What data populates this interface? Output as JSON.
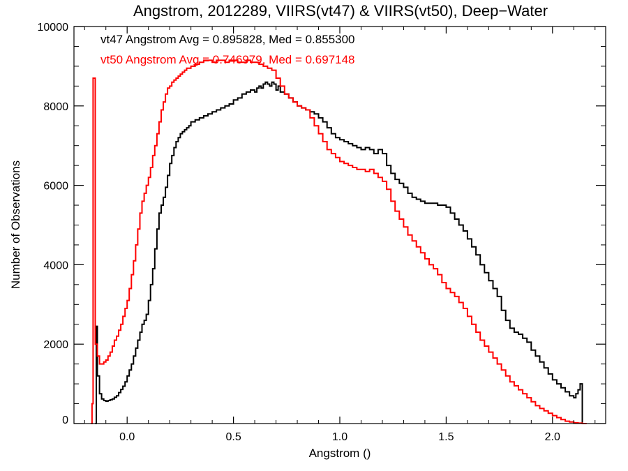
{
  "chart_data": {
    "type": "line",
    "title": "Angstrom, 2012289, VIIRS(vt47) & VIIRS(vt50), Deep−Water",
    "xlabel": "Angstrom ()",
    "ylabel": "Number of Observations",
    "xlim": [
      -0.25,
      2.25
    ],
    "ylim": [
      0,
      10000
    ],
    "xticks": [
      0.0,
      0.5,
      1.0,
      1.5,
      2.0
    ],
    "xtick_labels": [
      "0.0",
      "0.5",
      "1.0",
      "1.5",
      "2.0"
    ],
    "yticks": [
      0,
      2000,
      4000,
      6000,
      8000,
      10000
    ],
    "ytick_labels": [
      "0",
      "2000",
      "4000",
      "6000",
      "8000",
      "10000"
    ],
    "grid": false,
    "annotations": [
      {
        "text": "vt47 Angstrom Avg = 0.895828, Med = 0.855300",
        "color": "#000000"
      },
      {
        "text": "vt50 Angstrom Avg = 0.746979, Med = 0.697148",
        "color": "#ff0000"
      }
    ],
    "series": [
      {
        "color": "#000000",
        "points": [
          [
            -0.15,
            0
          ],
          [
            -0.145,
            2450
          ],
          [
            -0.14,
            1200
          ],
          [
            -0.13,
            750
          ],
          [
            -0.12,
            620
          ],
          [
            -0.11,
            580
          ],
          [
            -0.1,
            560
          ],
          [
            -0.09,
            580
          ],
          [
            -0.08,
            600
          ],
          [
            -0.07,
            620
          ],
          [
            -0.06,
            660
          ],
          [
            -0.05,
            700
          ],
          [
            -0.04,
            780
          ],
          [
            -0.03,
            860
          ],
          [
            -0.02,
            940
          ],
          [
            -0.01,
            1050
          ],
          [
            0.0,
            1200
          ],
          [
            0.01,
            1350
          ],
          [
            0.02,
            1500
          ],
          [
            0.03,
            1700
          ],
          [
            0.04,
            1900
          ],
          [
            0.05,
            2100
          ],
          [
            0.06,
            2300
          ],
          [
            0.07,
            2500
          ],
          [
            0.08,
            2600
          ],
          [
            0.09,
            2750
          ],
          [
            0.1,
            3100
          ],
          [
            0.11,
            3500
          ],
          [
            0.12,
            3900
          ],
          [
            0.13,
            4400
          ],
          [
            0.14,
            4900
          ],
          [
            0.15,
            5300
          ],
          [
            0.16,
            5500
          ],
          [
            0.17,
            5700
          ],
          [
            0.18,
            5950
          ],
          [
            0.19,
            6250
          ],
          [
            0.2,
            6550
          ],
          [
            0.21,
            6750
          ],
          [
            0.22,
            6950
          ],
          [
            0.23,
            7100
          ],
          [
            0.24,
            7200
          ],
          [
            0.25,
            7300
          ],
          [
            0.26,
            7350
          ],
          [
            0.27,
            7400
          ],
          [
            0.28,
            7450
          ],
          [
            0.29,
            7500
          ],
          [
            0.3,
            7600
          ],
          [
            0.32,
            7650
          ],
          [
            0.34,
            7700
          ],
          [
            0.36,
            7750
          ],
          [
            0.38,
            7800
          ],
          [
            0.4,
            7850
          ],
          [
            0.42,
            7900
          ],
          [
            0.44,
            7950
          ],
          [
            0.46,
            8000
          ],
          [
            0.48,
            8050
          ],
          [
            0.5,
            8150
          ],
          [
            0.52,
            8200
          ],
          [
            0.54,
            8300
          ],
          [
            0.56,
            8350
          ],
          [
            0.58,
            8400
          ],
          [
            0.6,
            8350
          ],
          [
            0.61,
            8450
          ],
          [
            0.62,
            8500
          ],
          [
            0.63,
            8450
          ],
          [
            0.64,
            8550
          ],
          [
            0.65,
            8600
          ],
          [
            0.66,
            8550
          ],
          [
            0.67,
            8500
          ],
          [
            0.68,
            8600
          ],
          [
            0.69,
            8550
          ],
          [
            0.7,
            8400
          ],
          [
            0.71,
            8500
          ],
          [
            0.72,
            8350
          ],
          [
            0.74,
            8300
          ],
          [
            0.76,
            8200
          ],
          [
            0.78,
            8100
          ],
          [
            0.8,
            8000
          ],
          [
            0.82,
            7950
          ],
          [
            0.84,
            7900
          ],
          [
            0.86,
            7850
          ],
          [
            0.88,
            7800
          ],
          [
            0.9,
            7700
          ],
          [
            0.92,
            7600
          ],
          [
            0.94,
            7450
          ],
          [
            0.96,
            7300
          ],
          [
            0.98,
            7200
          ],
          [
            1.0,
            7150
          ],
          [
            1.02,
            7100
          ],
          [
            1.04,
            7050
          ],
          [
            1.06,
            7000
          ],
          [
            1.08,
            6950
          ],
          [
            1.1,
            6900
          ],
          [
            1.12,
            6950
          ],
          [
            1.14,
            6900
          ],
          [
            1.16,
            6800
          ],
          [
            1.18,
            6900
          ],
          [
            1.2,
            6800
          ],
          [
            1.22,
            6500
          ],
          [
            1.24,
            6300
          ],
          [
            1.26,
            6150
          ],
          [
            1.28,
            6050
          ],
          [
            1.3,
            5950
          ],
          [
            1.32,
            5800
          ],
          [
            1.34,
            5700
          ],
          [
            1.36,
            5650
          ],
          [
            1.38,
            5600
          ],
          [
            1.4,
            5550
          ],
          [
            1.42,
            5550
          ],
          [
            1.44,
            5550
          ],
          [
            1.46,
            5500
          ],
          [
            1.48,
            5500
          ],
          [
            1.5,
            5450
          ],
          [
            1.52,
            5300
          ],
          [
            1.54,
            5150
          ],
          [
            1.56,
            5000
          ],
          [
            1.58,
            4850
          ],
          [
            1.6,
            4650
          ],
          [
            1.62,
            4450
          ],
          [
            1.64,
            4250
          ],
          [
            1.66,
            4000
          ],
          [
            1.68,
            3800
          ],
          [
            1.7,
            3600
          ],
          [
            1.72,
            3400
          ],
          [
            1.74,
            3200
          ],
          [
            1.76,
            2850
          ],
          [
            1.78,
            2600
          ],
          [
            1.8,
            2400
          ],
          [
            1.82,
            2300
          ],
          [
            1.84,
            2250
          ],
          [
            1.86,
            2150
          ],
          [
            1.88,
            2050
          ],
          [
            1.9,
            1850
          ],
          [
            1.92,
            1700
          ],
          [
            1.94,
            1550
          ],
          [
            1.96,
            1400
          ],
          [
            1.98,
            1250
          ],
          [
            2.0,
            1100
          ],
          [
            2.02,
            1000
          ],
          [
            2.04,
            900
          ],
          [
            2.06,
            800
          ],
          [
            2.08,
            700
          ],
          [
            2.1,
            650
          ],
          [
            2.11,
            750
          ],
          [
            2.12,
            850
          ],
          [
            2.13,
            1000
          ],
          [
            2.14,
            0
          ]
        ]
      },
      {
        "color": "#ff0000",
        "points": [
          [
            -0.17,
            0
          ],
          [
            -0.165,
            500
          ],
          [
            -0.16,
            8700
          ],
          [
            -0.15,
            2000
          ],
          [
            -0.14,
            1700
          ],
          [
            -0.13,
            1500
          ],
          [
            -0.12,
            1500
          ],
          [
            -0.11,
            1550
          ],
          [
            -0.1,
            1600
          ],
          [
            -0.09,
            1700
          ],
          [
            -0.08,
            1800
          ],
          [
            -0.07,
            1950
          ],
          [
            -0.06,
            2100
          ],
          [
            -0.05,
            2200
          ],
          [
            -0.04,
            2350
          ],
          [
            -0.03,
            2500
          ],
          [
            -0.02,
            2700
          ],
          [
            -0.01,
            2900
          ],
          [
            0.0,
            3100
          ],
          [
            0.01,
            3400
          ],
          [
            0.02,
            3750
          ],
          [
            0.03,
            4100
          ],
          [
            0.04,
            4500
          ],
          [
            0.05,
            4900
          ],
          [
            0.06,
            5300
          ],
          [
            0.07,
            5600
          ],
          [
            0.08,
            5800
          ],
          [
            0.09,
            6000
          ],
          [
            0.1,
            6200
          ],
          [
            0.11,
            6450
          ],
          [
            0.12,
            6750
          ],
          [
            0.13,
            7000
          ],
          [
            0.14,
            7300
          ],
          [
            0.15,
            7600
          ],
          [
            0.16,
            7900
          ],
          [
            0.17,
            8100
          ],
          [
            0.18,
            8300
          ],
          [
            0.19,
            8450
          ],
          [
            0.2,
            8500
          ],
          [
            0.21,
            8600
          ],
          [
            0.22,
            8650
          ],
          [
            0.23,
            8700
          ],
          [
            0.24,
            8750
          ],
          [
            0.25,
            8800
          ],
          [
            0.26,
            8850
          ],
          [
            0.27,
            8900
          ],
          [
            0.28,
            8950
          ],
          [
            0.3,
            9000
          ],
          [
            0.32,
            9050
          ],
          [
            0.34,
            9100
          ],
          [
            0.36,
            9150
          ],
          [
            0.38,
            9150
          ],
          [
            0.4,
            9100
          ],
          [
            0.42,
            9150
          ],
          [
            0.44,
            9150
          ],
          [
            0.46,
            9100
          ],
          [
            0.48,
            9150
          ],
          [
            0.5,
            9150
          ],
          [
            0.52,
            9100
          ],
          [
            0.54,
            9100
          ],
          [
            0.56,
            9150
          ],
          [
            0.58,
            9100
          ],
          [
            0.6,
            9100
          ],
          [
            0.62,
            9050
          ],
          [
            0.64,
            9000
          ],
          [
            0.66,
            8950
          ],
          [
            0.68,
            8900
          ],
          [
            0.7,
            8700
          ],
          [
            0.72,
            8500
          ],
          [
            0.74,
            8300
          ],
          [
            0.76,
            8200
          ],
          [
            0.78,
            8100
          ],
          [
            0.8,
            8000
          ],
          [
            0.82,
            7950
          ],
          [
            0.84,
            7900
          ],
          [
            0.86,
            7700
          ],
          [
            0.88,
            7500
          ],
          [
            0.9,
            7300
          ],
          [
            0.92,
            7100
          ],
          [
            0.94,
            6900
          ],
          [
            0.96,
            6800
          ],
          [
            0.98,
            6700
          ],
          [
            1.0,
            6600
          ],
          [
            1.02,
            6550
          ],
          [
            1.04,
            6500
          ],
          [
            1.06,
            6450
          ],
          [
            1.08,
            6400
          ],
          [
            1.1,
            6400
          ],
          [
            1.12,
            6350
          ],
          [
            1.14,
            6400
          ],
          [
            1.16,
            6300
          ],
          [
            1.18,
            6200
          ],
          [
            1.2,
            6100
          ],
          [
            1.22,
            5900
          ],
          [
            1.24,
            5600
          ],
          [
            1.26,
            5350
          ],
          [
            1.28,
            5150
          ],
          [
            1.3,
            4950
          ],
          [
            1.32,
            4750
          ],
          [
            1.34,
            4600
          ],
          [
            1.36,
            4450
          ],
          [
            1.38,
            4300
          ],
          [
            1.4,
            4150
          ],
          [
            1.42,
            4000
          ],
          [
            1.44,
            3900
          ],
          [
            1.46,
            3750
          ],
          [
            1.48,
            3550
          ],
          [
            1.5,
            3400
          ],
          [
            1.52,
            3300
          ],
          [
            1.54,
            3200
          ],
          [
            1.56,
            3050
          ],
          [
            1.58,
            2900
          ],
          [
            1.6,
            2700
          ],
          [
            1.62,
            2500
          ],
          [
            1.64,
            2300
          ],
          [
            1.66,
            2100
          ],
          [
            1.68,
            1950
          ],
          [
            1.7,
            1800
          ],
          [
            1.72,
            1650
          ],
          [
            1.74,
            1500
          ],
          [
            1.76,
            1350
          ],
          [
            1.78,
            1200
          ],
          [
            1.8,
            1050
          ],
          [
            1.82,
            950
          ],
          [
            1.84,
            850
          ],
          [
            1.86,
            750
          ],
          [
            1.88,
            650
          ],
          [
            1.9,
            550
          ],
          [
            1.92,
            450
          ],
          [
            1.94,
            380
          ],
          [
            1.96,
            320
          ],
          [
            1.98,
            260
          ],
          [
            2.0,
            200
          ],
          [
            2.02,
            150
          ],
          [
            2.04,
            100
          ],
          [
            2.06,
            60
          ],
          [
            2.08,
            40
          ],
          [
            2.1,
            20
          ],
          [
            2.12,
            10
          ],
          [
            2.14,
            0
          ],
          [
            2.16,
            0
          ]
        ]
      }
    ]
  }
}
